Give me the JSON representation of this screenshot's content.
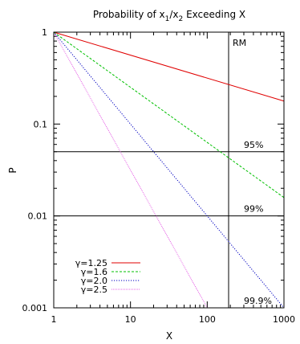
{
  "chart_data": {
    "type": "line",
    "title_main": "Probability of x",
    "title_sub1": "1",
    "title_mid": "/x",
    "title_sub2": "2",
    "title_end": " Exceeding X",
    "xlabel": "X",
    "ylabel": "P",
    "xscale": "log",
    "yscale": "log",
    "xlim": [
      1,
      1000
    ],
    "ylim": [
      0.001,
      1
    ],
    "xticks": [
      {
        "value": 1,
        "label": "1"
      },
      {
        "value": 10,
        "label": "10"
      },
      {
        "value": 100,
        "label": "100"
      },
      {
        "value": 1000,
        "label": "1000"
      }
    ],
    "yticks": [
      {
        "value": 1,
        "label": "1"
      },
      {
        "value": 0.1,
        "label": "0.1"
      },
      {
        "value": 0.01,
        "label": "0.01"
      },
      {
        "value": 0.001,
        "label": "0.001"
      }
    ],
    "legend_position": "bottom-left",
    "series": [
      {
        "name": "γ=1.25",
        "exponent": 0.25,
        "color": "#e00000",
        "dash": "solid",
        "x": [
          1,
          1000
        ],
        "y": [
          1,
          0.1778
        ]
      },
      {
        "name": "γ=1.6",
        "exponent": 0.6,
        "color": "#00c000",
        "dash": "dashed",
        "x": [
          1,
          1000
        ],
        "y": [
          1,
          0.01585
        ]
      },
      {
        "name": "γ=2.0",
        "exponent": 1.0,
        "color": "#0000c0",
        "dash": "dotted",
        "x": [
          1,
          1000
        ],
        "y": [
          1,
          0.001
        ]
      },
      {
        "name": "γ=2.5",
        "exponent": 1.5,
        "color": "#e040e0",
        "dash": "dense-dot",
        "x": [
          1,
          100
        ],
        "y": [
          1,
          0.001
        ]
      }
    ],
    "reference_lines": [
      {
        "orientation": "horizontal",
        "value": 0.05,
        "label": "95%"
      },
      {
        "orientation": "horizontal",
        "value": 0.01,
        "label": "99%"
      },
      {
        "orientation": "horizontal",
        "value": 0.001,
        "label": "99.9%"
      },
      {
        "orientation": "vertical",
        "value": 190,
        "label": "RM"
      }
    ]
  }
}
